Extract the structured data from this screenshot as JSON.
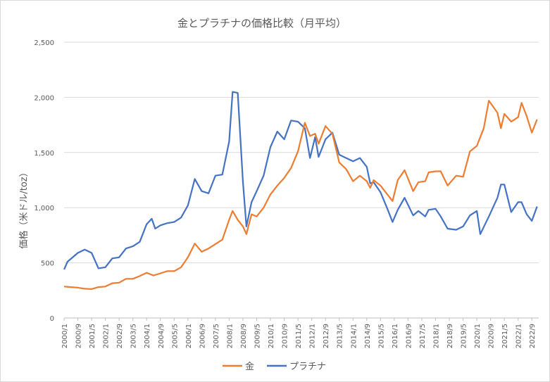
{
  "chart_data": {
    "type": "line",
    "title": "金とプラチナの価格比較（月平均）",
    "ylabel": "価格（米ドル/toz）",
    "xlabel": "",
    "ylim": [
      0,
      2500
    ],
    "yticks": [
      "0",
      "500",
      "1,000",
      "1,500",
      "2,000",
      "2,500"
    ],
    "xticks": [
      "2000/1",
      "2000/9",
      "2001/5",
      "2002/1",
      "2002/9",
      "2003/5",
      "2004/1",
      "2004/9",
      "2005/5",
      "2006/1",
      "2006/9",
      "2007/5",
      "2008/1",
      "2008/9",
      "2009/5",
      "2010/1",
      "2010/9",
      "2011/5",
      "2012/1",
      "2012/9",
      "2013/5",
      "2014/1",
      "2014/9",
      "2015/5",
      "2016/1",
      "2016/9",
      "2017/5",
      "2018/1",
      "2018/9",
      "2019/5",
      "2020/1",
      "2020/9",
      "2021/5",
      "2022/1",
      "2022/9"
    ],
    "grid": true,
    "legend_position": "bottom",
    "series": [
      {
        "name": "金",
        "color": "#ED7D31",
        "points": [
          [
            "2000/1",
            285
          ],
          [
            "2000/5",
            280
          ],
          [
            "2000/9",
            275
          ],
          [
            "2001/1",
            265
          ],
          [
            "2001/5",
            262
          ],
          [
            "2001/9",
            280
          ],
          [
            "2002/1",
            285
          ],
          [
            "2002/5",
            315
          ],
          [
            "2002/9",
            320
          ],
          [
            "2003/1",
            355
          ],
          [
            "2003/5",
            355
          ],
          [
            "2003/9",
            380
          ],
          [
            "2004/1",
            410
          ],
          [
            "2004/5",
            385
          ],
          [
            "2004/9",
            405
          ],
          [
            "2005/1",
            425
          ],
          [
            "2005/5",
            425
          ],
          [
            "2005/9",
            460
          ],
          [
            "2006/1",
            550
          ],
          [
            "2006/5",
            675
          ],
          [
            "2006/9",
            600
          ],
          [
            "2007/1",
            630
          ],
          [
            "2007/5",
            670
          ],
          [
            "2007/9",
            710
          ],
          [
            "2008/1",
            890
          ],
          [
            "2008/3",
            970
          ],
          [
            "2008/6",
            890
          ],
          [
            "2008/9",
            830
          ],
          [
            "2008/11",
            760
          ],
          [
            "2009/2",
            940
          ],
          [
            "2009/5",
            920
          ],
          [
            "2009/9",
            1000
          ],
          [
            "2010/1",
            1120
          ],
          [
            "2010/5",
            1200
          ],
          [
            "2010/9",
            1270
          ],
          [
            "2011/1",
            1360
          ],
          [
            "2011/5",
            1510
          ],
          [
            "2011/9",
            1770
          ],
          [
            "2011/12",
            1650
          ],
          [
            "2012/3",
            1670
          ],
          [
            "2012/5",
            1580
          ],
          [
            "2012/9",
            1740
          ],
          [
            "2013/1",
            1670
          ],
          [
            "2013/5",
            1410
          ],
          [
            "2013/9",
            1350
          ],
          [
            "2014/1",
            1240
          ],
          [
            "2014/5",
            1290
          ],
          [
            "2014/9",
            1240
          ],
          [
            "2014/11",
            1180
          ],
          [
            "2015/1",
            1250
          ],
          [
            "2015/5",
            1200
          ],
          [
            "2015/9",
            1120
          ],
          [
            "2015/12",
            1060
          ],
          [
            "2016/3",
            1250
          ],
          [
            "2016/7",
            1340
          ],
          [
            "2016/12",
            1150
          ],
          [
            "2017/3",
            1230
          ],
          [
            "2017/7",
            1240
          ],
          [
            "2017/9",
            1320
          ],
          [
            "2018/1",
            1330
          ],
          [
            "2018/4",
            1330
          ],
          [
            "2018/8",
            1200
          ],
          [
            "2019/1",
            1290
          ],
          [
            "2019/5",
            1280
          ],
          [
            "2019/9",
            1510
          ],
          [
            "2020/1",
            1560
          ],
          [
            "2020/5",
            1720
          ],
          [
            "2020/8",
            1970
          ],
          [
            "2021/1",
            1860
          ],
          [
            "2021/3",
            1720
          ],
          [
            "2021/5",
            1850
          ],
          [
            "2021/9",
            1780
          ],
          [
            "2022/1",
            1820
          ],
          [
            "2022/3",
            1950
          ],
          [
            "2022/6",
            1830
          ],
          [
            "2022/9",
            1680
          ],
          [
            "2022/12",
            1800
          ]
        ]
      },
      {
        "name": "プラチナ",
        "color": "#4472C4",
        "points": [
          [
            "2000/1",
            440
          ],
          [
            "2000/3",
            510
          ],
          [
            "2000/9",
            590
          ],
          [
            "2001/1",
            620
          ],
          [
            "2001/5",
            590
          ],
          [
            "2001/9",
            450
          ],
          [
            "2002/1",
            460
          ],
          [
            "2002/5",
            540
          ],
          [
            "2002/9",
            550
          ],
          [
            "2003/1",
            630
          ],
          [
            "2003/5",
            650
          ],
          [
            "2003/9",
            690
          ],
          [
            "2004/1",
            850
          ],
          [
            "2004/4",
            900
          ],
          [
            "2004/6",
            810
          ],
          [
            "2004/9",
            840
          ],
          [
            "2005/1",
            860
          ],
          [
            "2005/5",
            870
          ],
          [
            "2005/9",
            910
          ],
          [
            "2006/1",
            1020
          ],
          [
            "2006/5",
            1260
          ],
          [
            "2006/9",
            1150
          ],
          [
            "2007/1",
            1130
          ],
          [
            "2007/5",
            1290
          ],
          [
            "2007/9",
            1300
          ],
          [
            "2008/1",
            1600
          ],
          [
            "2008/3",
            2050
          ],
          [
            "2008/6",
            2040
          ],
          [
            "2008/9",
            1230
          ],
          [
            "2008/11",
            830
          ],
          [
            "2009/2",
            1050
          ],
          [
            "2009/5",
            1150
          ],
          [
            "2009/9",
            1290
          ],
          [
            "2010/1",
            1550
          ],
          [
            "2010/5",
            1690
          ],
          [
            "2010/9",
            1620
          ],
          [
            "2011/1",
            1790
          ],
          [
            "2011/5",
            1780
          ],
          [
            "2011/9",
            1720
          ],
          [
            "2011/12",
            1450
          ],
          [
            "2012/3",
            1640
          ],
          [
            "2012/5",
            1460
          ],
          [
            "2012/9",
            1620
          ],
          [
            "2013/1",
            1680
          ],
          [
            "2013/5",
            1480
          ],
          [
            "2013/9",
            1450
          ],
          [
            "2014/1",
            1420
          ],
          [
            "2014/5",
            1450
          ],
          [
            "2014/9",
            1370
          ],
          [
            "2014/11",
            1220
          ],
          [
            "2015/1",
            1230
          ],
          [
            "2015/5",
            1140
          ],
          [
            "2015/9",
            990
          ],
          [
            "2015/12",
            870
          ],
          [
            "2016/3",
            980
          ],
          [
            "2016/7",
            1090
          ],
          [
            "2016/12",
            930
          ],
          [
            "2017/3",
            970
          ],
          [
            "2017/7",
            920
          ],
          [
            "2017/9",
            980
          ],
          [
            "2018/1",
            990
          ],
          [
            "2018/4",
            920
          ],
          [
            "2018/8",
            810
          ],
          [
            "2019/1",
            800
          ],
          [
            "2019/5",
            830
          ],
          [
            "2019/9",
            930
          ],
          [
            "2020/1",
            970
          ],
          [
            "2020/3",
            760
          ],
          [
            "2020/8",
            920
          ],
          [
            "2021/1",
            1090
          ],
          [
            "2021/3",
            1210
          ],
          [
            "2021/5",
            1210
          ],
          [
            "2021/9",
            960
          ],
          [
            "2022/1",
            1050
          ],
          [
            "2022/3",
            1050
          ],
          [
            "2022/6",
            940
          ],
          [
            "2022/9",
            880
          ],
          [
            "2022/12",
            1010
          ]
        ]
      }
    ]
  }
}
